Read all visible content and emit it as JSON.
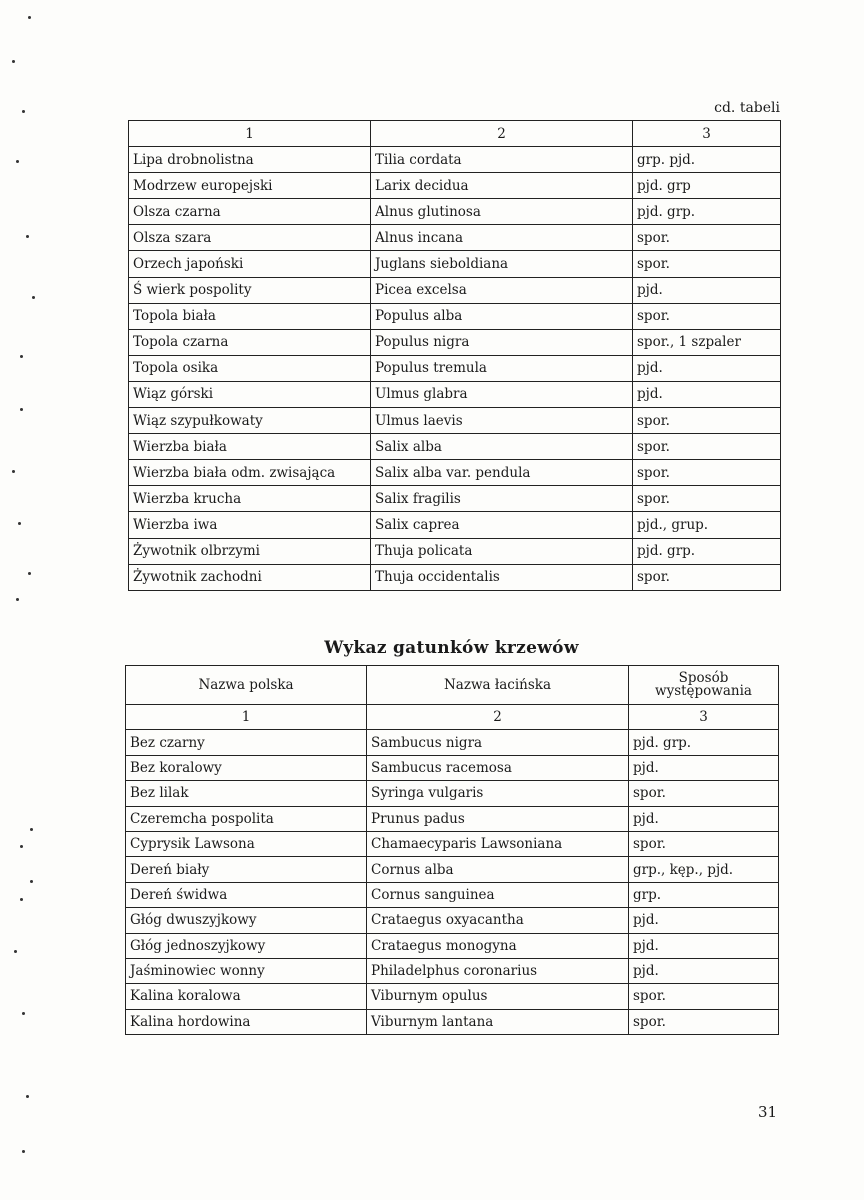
{
  "continuation_label": "cd. tabeli",
  "trees_table": {
    "column_numbers": [
      "1",
      "2",
      "3"
    ],
    "rows": [
      [
        "Lipa drobnolistna",
        "Tilia cordata",
        "grp. pjd."
      ],
      [
        "Modrzew europejski",
        "Larix decidua",
        "pjd. grp"
      ],
      [
        "Olsza czarna",
        "Alnus glutinosa",
        "pjd. grp."
      ],
      [
        "Olsza szara",
        "Alnus incana",
        "spor."
      ],
      [
        "Orzech japoński",
        "Juglans sieboldiana",
        "spor."
      ],
      [
        "Ś wierk pospolity",
        "Picea excelsa",
        "pjd."
      ],
      [
        "Topola biała",
        "Populus alba",
        "spor."
      ],
      [
        "Topola czarna",
        "Populus nigra",
        "spor., 1 szpaler"
      ],
      [
        "Topola osika",
        "Populus tremula",
        "pjd."
      ],
      [
        "Wiąz górski",
        "Ulmus glabra",
        "pjd."
      ],
      [
        "Wiąz szypułkowaty",
        "Ulmus laevis",
        "spor."
      ],
      [
        "Wierzba biała",
        "Salix alba",
        "spor."
      ],
      [
        "Wierzba biała odm. zwisająca",
        "Salix alba var. pendula",
        "spor."
      ],
      [
        "Wierzba krucha",
        "Salix fragilis",
        "spor."
      ],
      [
        "Wierzba iwa",
        "Salix caprea",
        "pjd., grup."
      ],
      [
        "Żywotnik olbrzymi",
        "Thuja policata",
        "pjd. grp."
      ],
      [
        "Żywotnik zachodni",
        "Thuja occidentalis",
        "spor."
      ]
    ]
  },
  "shrubs_table": {
    "title": "Wykaz gatunków krzewów",
    "headers": [
      "Nazwa polska",
      "Nazwa łacińska",
      "Sposób występowania"
    ],
    "column_numbers": [
      "1",
      "2",
      "3"
    ],
    "rows": [
      [
        "Bez czarny",
        "Sambucus nigra",
        "pjd. grp."
      ],
      [
        "Bez koralowy",
        "Sambucus racemosa",
        "pjd."
      ],
      [
        "Bez lilak",
        "Syringa vulgaris",
        "spor."
      ],
      [
        "Czeremcha pospolita",
        "Prunus padus",
        "pjd."
      ],
      [
        "Cyprysik Lawsona",
        "Chamaecyparis Lawsoniana",
        "spor."
      ],
      [
        "Dereń biały",
        "Cornus alba",
        "grp., kęp., pjd."
      ],
      [
        "Dereń świdwa",
        "Cornus sanguinea",
        "grp."
      ],
      [
        "Głóg dwuszyjkowy",
        "Crataegus oxyacantha",
        "pjd."
      ],
      [
        "Głóg jednoszyjkowy",
        "Crataegus monogyna",
        "pjd."
      ],
      [
        "Jaśminowiec wonny",
        "Philadelphus coronarius",
        "pjd."
      ],
      [
        "Kalina koralowa",
        "Viburnym opulus",
        "spor."
      ],
      [
        "Kalina hordowina",
        "Viburnym lantana",
        "spor."
      ]
    ]
  },
  "page_number": "31"
}
